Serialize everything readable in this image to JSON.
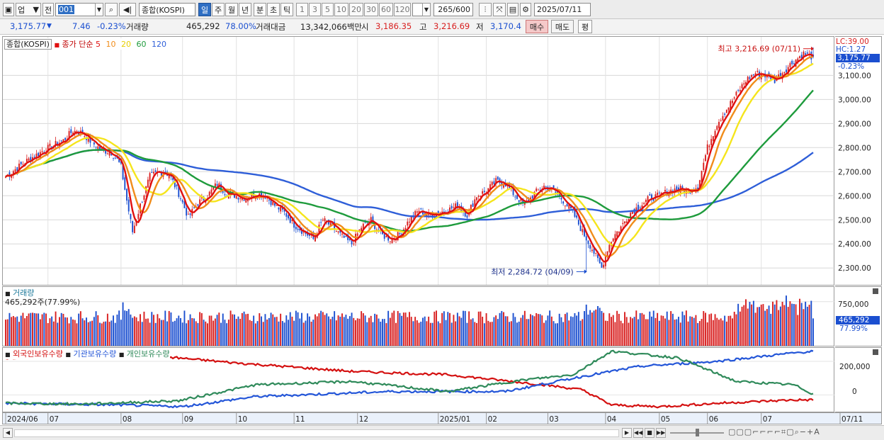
{
  "toolbar": {
    "market": "업",
    "jeon": "전",
    "code": "001",
    "name": "종합(KOSPI)",
    "periods": [
      "일",
      "주",
      "월",
      "년",
      "분",
      "초",
      "틱"
    ],
    "active_period": "일",
    "nums": [
      "1",
      "3",
      "5",
      "10",
      "20",
      "30",
      "60",
      "120"
    ],
    "count": "265",
    "count_total": "/600",
    "date": "2025/07/11"
  },
  "quote": {
    "price": "3,175.77",
    "change": "7.46",
    "pct": "-0.23%",
    "vol_label": "거래량",
    "volume": "465,292",
    "vol_ratio": "78.00%",
    "amt_label": "거래대금",
    "amount": "13,342,066백만",
    "open_label": "시",
    "open": "3,186.35",
    "high_label": "고",
    "high": "3,216.69",
    "low_label": "저",
    "low": "3,170.4",
    "buy": "매수",
    "sell": "매도",
    "eval": "평"
  },
  "colors": {
    "up": "#d81e1e",
    "down": "#1b4fd0",
    "ma5": "#e01010",
    "ma10": "#f08c1a",
    "ma20": "#f5e51c",
    "ma60": "#1e9b3c",
    "ma120": "#2e5ed8",
    "foreign": "#d41010",
    "inst": "#2456d8",
    "indiv": "#2f8a5a"
  },
  "price_panel": {
    "index_name": "종합(KOSPI)",
    "legend_prefix": "종가 단순",
    "ma_labels": [
      "5",
      "10",
      "20",
      "60",
      "120"
    ],
    "lc": "LC:39.00",
    "hc": "HC:1.27",
    "last_price": "3,175.77",
    "last_pct": "-0.23%",
    "max_label": "최고 3,216.69 (07/11)",
    "min_label": "최저 2,284.72 (04/09)"
  },
  "volume_panel": {
    "title": "거래량",
    "sub": "465,292주(77.99%)",
    "last": "465,292",
    "last_pct": "77.99%",
    "axis_label": "750,000"
  },
  "holdings_panel": {
    "series": [
      "외국인보유수량",
      "기관보유수량",
      "개인보유수량"
    ],
    "axis_labels": [
      "200,000",
      "0"
    ]
  },
  "chart_data": {
    "type": "candlestick",
    "title": "",
    "ylim": [
      2230,
      3260
    ],
    "y_ticks": [
      2300,
      2400,
      2500,
      2600,
      2700,
      2800,
      2900,
      3000,
      3100
    ],
    "y_tick_labels": [
      "2,300.00",
      "2,400.00",
      "2,500.00",
      "2,600.00",
      "2,700.00",
      "2,800.00",
      "2,900.00",
      "3,000.00",
      "3,100.00"
    ],
    "x_ticks": [
      "2024/06",
      "07",
      "08",
      "09",
      "10",
      "11",
      "12",
      "2025/01",
      "02",
      "03",
      "04",
      "05",
      "06",
      "07",
      "07/11"
    ],
    "x_tick_index": [
      0,
      22,
      60,
      92,
      120,
      150,
      183,
      225,
      250,
      282,
      312,
      340,
      365,
      393,
      420
    ],
    "close_anchors": {
      "index": [
        0,
        10,
        20,
        30,
        35,
        40,
        45,
        50,
        55,
        58,
        60,
        63,
        66,
        70,
        75,
        80,
        85,
        90,
        95,
        100,
        105,
        110,
        115,
        120,
        125,
        130,
        135,
        140,
        145,
        150,
        155,
        160,
        165,
        170,
        175,
        180,
        185,
        190,
        195,
        200,
        205,
        210,
        215,
        220,
        225,
        230,
        235,
        240,
        245,
        250,
        255,
        260,
        265,
        270,
        275,
        280,
        285,
        290,
        295,
        300,
        305,
        310,
        313,
        316,
        320,
        325,
        330,
        335,
        340,
        345,
        350,
        355,
        360,
        365,
        370,
        375,
        380,
        385,
        390,
        395,
        400,
        405,
        410,
        415,
        420
      ],
      "close": [
        2680,
        2740,
        2790,
        2830,
        2870,
        2860,
        2820,
        2790,
        2780,
        2750,
        2720,
        2580,
        2450,
        2560,
        2680,
        2700,
        2690,
        2610,
        2510,
        2570,
        2600,
        2650,
        2610,
        2600,
        2590,
        2610,
        2600,
        2560,
        2530,
        2480,
        2450,
        2420,
        2500,
        2470,
        2430,
        2400,
        2470,
        2500,
        2440,
        2420,
        2440,
        2500,
        2540,
        2520,
        2530,
        2540,
        2560,
        2520,
        2600,
        2620,
        2660,
        2650,
        2600,
        2560,
        2610,
        2640,
        2620,
        2580,
        2530,
        2450,
        2380,
        2300,
        2380,
        2430,
        2470,
        2530,
        2560,
        2590,
        2600,
        2620,
        2630,
        2620,
        2640,
        2800,
        2900,
        2960,
        3020,
        3080,
        3110,
        3100,
        3080,
        3120,
        3160,
        3190,
        3176
      ]
    },
    "ma_periods": [
      5,
      10,
      20,
      60,
      120
    ],
    "high": 3216.69,
    "low": 2284.72,
    "volume_ylim": [
      0,
      1000000
    ],
    "holdings_ylim": [
      -100000,
      280000
    ]
  }
}
